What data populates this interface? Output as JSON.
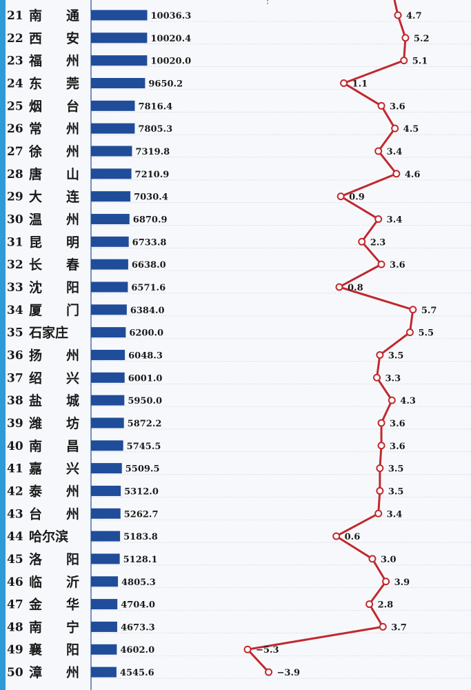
{
  "colors": {
    "bar": "#1f4d9a",
    "line": "#c0282d",
    "background": "#f7f8fb",
    "frame": "#2f9ad8"
  },
  "chart_data": {
    "type": "bar",
    "series_types": [
      "bar",
      "line"
    ],
    "categories": [
      "南 通",
      "西 安",
      "福 州",
      "东 莞",
      "烟 台",
      "常 州",
      "徐 州",
      "唐 山",
      "大 连",
      "温 州",
      "昆 明",
      "长 春",
      "沈 阳",
      "厦 门",
      "石家庄",
      "扬 州",
      "绍 兴",
      "盐 城",
      "潍 坊",
      "南 昌",
      "嘉 兴",
      "泰 州",
      "台 州",
      "哈尔滨",
      "洛 阳",
      "临 沂",
      "金 华",
      "南 宁",
      "襄 阳",
      "漳 州"
    ],
    "ranks": [
      "21",
      "22",
      "23",
      "24",
      "25",
      "26",
      "27",
      "28",
      "29",
      "30",
      "31",
      "32",
      "33",
      "34",
      "35",
      "36",
      "37",
      "38",
      "39",
      "40",
      "41",
      "42",
      "43",
      "44",
      "45",
      "46",
      "47",
      "48",
      "49",
      "50"
    ],
    "value_labels": [
      "10036.3",
      "10020.4",
      "10020.0",
      "9650.2",
      "7816.4",
      "7805.3",
      "7319.8",
      "7210.9",
      "7030.4",
      "6870.9",
      "6733.8",
      "6638.0",
      "6571.6",
      "6384.0",
      "6200.0",
      "6048.3",
      "6001.0",
      "5950.0",
      "5872.2",
      "5745.5",
      "5509.5",
      "5312.0",
      "5262.7",
      "5183.8",
      "5128.1",
      "4805.3",
      "4704.0",
      "4673.3",
      "4602.0",
      "4545.6"
    ],
    "values": [
      10036.3,
      10020.4,
      10020.0,
      9650.2,
      7816.4,
      7805.3,
      7319.8,
      7210.9,
      7030.4,
      6870.9,
      6733.8,
      6638.0,
      6571.6,
      6384.0,
      6200.0,
      6048.3,
      6001.0,
      5950.0,
      5872.2,
      5745.5,
      5509.5,
      5312.0,
      5262.7,
      5183.8,
      5128.1,
      4805.3,
      4704.0,
      4673.3,
      4602.0,
      4545.6
    ],
    "growth_labels": [
      "4.7",
      "5.2",
      "5.1",
      "1.1",
      "3.6",
      "4.5",
      "3.4",
      "4.6",
      "0.9",
      "3.4",
      "2.3",
      "3.6",
      "0.8",
      "5.7",
      "5.5",
      "3.5",
      "3.3",
      "4.3",
      "3.6",
      "3.6",
      "3.5",
      "3.5",
      "3.4",
      "0.6",
      "3.0",
      "3.9",
      "2.8",
      "3.7",
      "−5.3",
      "−3.9"
    ],
    "growth": [
      4.7,
      5.2,
      5.1,
      1.1,
      3.6,
      4.5,
      3.4,
      4.6,
      0.9,
      3.4,
      2.3,
      3.6,
      0.8,
      5.7,
      5.5,
      3.5,
      3.3,
      4.3,
      3.6,
      3.6,
      3.5,
      3.5,
      3.4,
      0.6,
      3.0,
      3.9,
      2.8,
      3.7,
      -5.3,
      -3.9
    ],
    "orientation": "horizontal",
    "grid": "dotted horizontal",
    "legend": "none"
  }
}
